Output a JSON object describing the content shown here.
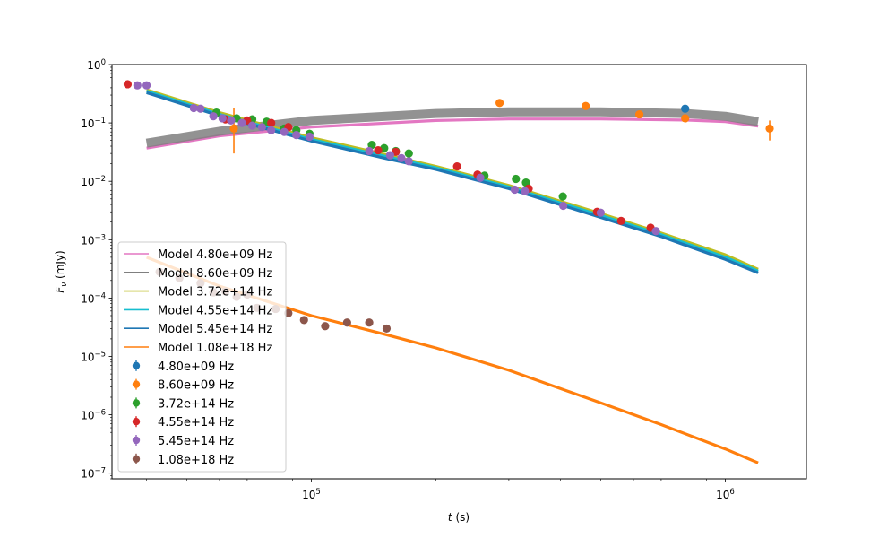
{
  "chart_data": {
    "type": "scatter",
    "xscale": "log",
    "yscale": "log",
    "xlim": [
      33000,
      1570000
    ],
    "ylim": [
      8e-08,
      1.0
    ],
    "xlabel": "t (s)",
    "ylabel": "F_ν (mJy)",
    "x_ticks": [
      {
        "value": 100000,
        "base": "10",
        "exp": "5"
      },
      {
        "value": 1000000,
        "base": "10",
        "exp": "6"
      }
    ],
    "y_ticks": [
      {
        "value": 1e-07,
        "base": "10",
        "exp": "−7"
      },
      {
        "value": 1e-06,
        "base": "10",
        "exp": "−6"
      },
      {
        "value": 1e-05,
        "base": "10",
        "exp": "−5"
      },
      {
        "value": 0.0001,
        "base": "10",
        "exp": "−4"
      },
      {
        "value": 0.001,
        "base": "10",
        "exp": "−3"
      },
      {
        "value": 0.01,
        "base": "10",
        "exp": "−2"
      },
      {
        "value": 0.1,
        "base": "10",
        "exp": "−1"
      },
      {
        "value": 1,
        "base": "10",
        "exp": "0"
      }
    ],
    "legend_position": "lower left",
    "models": [
      {
        "name": "Model 4.80e+09 Hz",
        "color": "#e377c2",
        "x": [
          40000,
          60000,
          100000,
          200000,
          300000,
          500000,
          800000,
          1000000,
          1200000
        ],
        "y": [
          0.037,
          0.06,
          0.085,
          0.11,
          0.117,
          0.117,
          0.112,
          0.105,
          0.088
        ]
      },
      {
        "name": "Model 8.60e+09 Hz",
        "color": "#7f7f7f",
        "x": [
          40000,
          60000,
          100000,
          200000,
          300000,
          500000,
          800000,
          1000000,
          1200000
        ],
        "y": [
          0.045,
          0.072,
          0.11,
          0.145,
          0.155,
          0.155,
          0.145,
          0.13,
          0.105
        ]
      },
      {
        "name": "Model 3.72e+14 Hz",
        "color": "#bcbd22",
        "x": [
          40000,
          60000,
          100000,
          150000,
          200000,
          300000,
          500000,
          700000,
          1000000,
          1200000
        ],
        "y": [
          0.37,
          0.15,
          0.056,
          0.029,
          0.018,
          0.0085,
          0.0028,
          0.0013,
          0.00055,
          0.00031
        ]
      },
      {
        "name": "Model 4.55e+14 Hz",
        "color": "#17becf",
        "x": [
          40000,
          60000,
          100000,
          150000,
          200000,
          300000,
          500000,
          700000,
          1000000,
          1200000
        ],
        "y": [
          0.35,
          0.14,
          0.052,
          0.027,
          0.017,
          0.008,
          0.0026,
          0.00122,
          0.0005,
          0.00029
        ]
      },
      {
        "name": "Model 5.45e+14 Hz",
        "color": "#1f77b4",
        "x": [
          40000,
          60000,
          100000,
          150000,
          200000,
          300000,
          500000,
          700000,
          1000000,
          1200000
        ],
        "y": [
          0.33,
          0.132,
          0.049,
          0.025,
          0.016,
          0.0075,
          0.0024,
          0.00113,
          0.00046,
          0.00027
        ]
      },
      {
        "name": "Model 1.08e+18 Hz",
        "color": "#ff7f0e",
        "x": [
          40000,
          60000,
          100000,
          150000,
          200000,
          300000,
          500000,
          700000,
          1000000,
          1200000
        ],
        "y": [
          0.0005,
          0.00016,
          5e-05,
          2.4e-05,
          1.4e-05,
          5.8e-06,
          1.6e-06,
          6.8e-07,
          2.6e-07,
          1.5e-07
        ]
      }
    ],
    "series": [
      {
        "name": "4.80e+09 Hz",
        "color": "#1f77b4",
        "points": [
          {
            "x": 800000,
            "y": 0.175,
            "yerr_lo": 0.16,
            "yerr_hi": 0.19
          }
        ]
      },
      {
        "name": "8.60e+09 Hz",
        "color": "#ff7f0e",
        "points": [
          {
            "x": 65000,
            "y": 0.08,
            "yerr_lo": 0.03,
            "yerr_hi": 0.18
          },
          {
            "x": 285000,
            "y": 0.22
          },
          {
            "x": 460000,
            "y": 0.195
          },
          {
            "x": 620000,
            "y": 0.14
          },
          {
            "x": 800000,
            "y": 0.12
          },
          {
            "x": 1280000,
            "y": 0.08,
            "yerr_lo": 0.05,
            "yerr_hi": 0.11
          }
        ]
      },
      {
        "name": "3.72e+14 Hz",
        "color": "#2ca02c",
        "points": [
          {
            "x": 59000,
            "y": 0.15
          },
          {
            "x": 66000,
            "y": 0.12
          },
          {
            "x": 72000,
            "y": 0.115
          },
          {
            "x": 78000,
            "y": 0.105
          },
          {
            "x": 86000,
            "y": 0.08
          },
          {
            "x": 92000,
            "y": 0.075
          },
          {
            "x": 99000,
            "y": 0.065
          },
          {
            "x": 140000,
            "y": 0.042
          },
          {
            "x": 150000,
            "y": 0.037
          },
          {
            "x": 160000,
            "y": 0.033
          },
          {
            "x": 172000,
            "y": 0.03
          },
          {
            "x": 262000,
            "y": 0.0125
          },
          {
            "x": 312000,
            "y": 0.011
          },
          {
            "x": 330000,
            "y": 0.0095
          },
          {
            "x": 405000,
            "y": 0.0055
          }
        ]
      },
      {
        "name": "4.55e+14 Hz",
        "color": "#d62728",
        "points": [
          {
            "x": 36000,
            "y": 0.46
          },
          {
            "x": 62000,
            "y": 0.115
          },
          {
            "x": 70000,
            "y": 0.11
          },
          {
            "x": 80000,
            "y": 0.1
          },
          {
            "x": 88000,
            "y": 0.085
          },
          {
            "x": 145000,
            "y": 0.034
          },
          {
            "x": 160000,
            "y": 0.032
          },
          {
            "x": 225000,
            "y": 0.018
          },
          {
            "x": 252000,
            "y": 0.013
          },
          {
            "x": 335000,
            "y": 0.0075
          },
          {
            "x": 490000,
            "y": 0.003
          },
          {
            "x": 560000,
            "y": 0.0021
          },
          {
            "x": 660000,
            "y": 0.0016
          }
        ]
      },
      {
        "name": "5.45e+14 Hz",
        "color": "#9467bd",
        "points": [
          {
            "x": 38000,
            "y": 0.44
          },
          {
            "x": 40000,
            "y": 0.44
          },
          {
            "x": 52000,
            "y": 0.18
          },
          {
            "x": 54000,
            "y": 0.175
          },
          {
            "x": 58000,
            "y": 0.13
          },
          {
            "x": 61000,
            "y": 0.12
          },
          {
            "x": 64000,
            "y": 0.11
          },
          {
            "x": 68000,
            "y": 0.1
          },
          {
            "x": 72000,
            "y": 0.09
          },
          {
            "x": 76000,
            "y": 0.085
          },
          {
            "x": 80000,
            "y": 0.075
          },
          {
            "x": 86000,
            "y": 0.07
          },
          {
            "x": 92000,
            "y": 0.062
          },
          {
            "x": 99000,
            "y": 0.058
          },
          {
            "x": 138000,
            "y": 0.033
          },
          {
            "x": 155000,
            "y": 0.028
          },
          {
            "x": 165000,
            "y": 0.025
          },
          {
            "x": 172000,
            "y": 0.022
          },
          {
            "x": 256000,
            "y": 0.0115
          },
          {
            "x": 310000,
            "y": 0.0072
          },
          {
            "x": 328000,
            "y": 0.0068
          },
          {
            "x": 406000,
            "y": 0.0038
          },
          {
            "x": 500000,
            "y": 0.0029
          },
          {
            "x": 680000,
            "y": 0.0014
          }
        ]
      },
      {
        "name": "1.08e+18 Hz",
        "color": "#8c564b",
        "points": [
          {
            "x": 43000,
            "y": 0.00028
          },
          {
            "x": 48000,
            "y": 0.00022
          },
          {
            "x": 54000,
            "y": 0.00018
          },
          {
            "x": 58000,
            "y": 0.000125
          },
          {
            "x": 62000,
            "y": 0.00013
          },
          {
            "x": 66000,
            "y": 0.000105
          },
          {
            "x": 70000,
            "y": 0.000115
          },
          {
            "x": 74000,
            "y": 6.8e-05
          },
          {
            "x": 82000,
            "y": 6.5e-05
          },
          {
            "x": 88000,
            "y": 5.5e-05
          },
          {
            "x": 96000,
            "y": 4.2e-05
          },
          {
            "x": 108000,
            "y": 3.3e-05
          },
          {
            "x": 122000,
            "y": 3.8e-05
          },
          {
            "x": 138000,
            "y": 3.8e-05
          },
          {
            "x": 152000,
            "y": 3e-05
          }
        ]
      }
    ]
  }
}
